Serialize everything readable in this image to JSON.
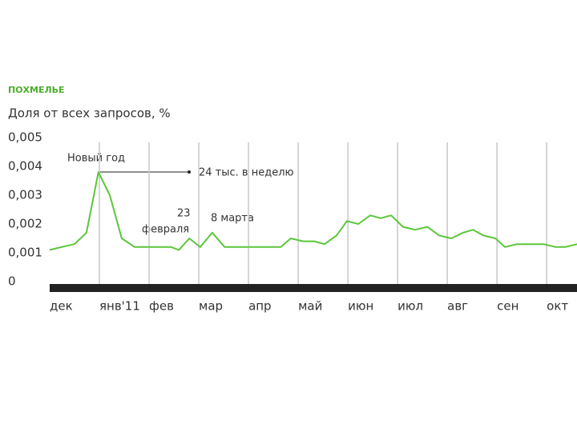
{
  "chart_data": {
    "type": "line",
    "title": "ПОХМЕЛЬЕ",
    "subtitle": "Доля от всех запросов, %",
    "annotations": [
      "Новый год",
      "24 тыс. в неделю",
      "23",
      "февраля",
      "8 марта"
    ],
    "x": [
      0,
      0.24,
      0.5,
      0.74,
      0.98,
      1.21,
      1.45,
      1.71,
      1.95,
      2.19,
      2.44,
      2.6,
      2.81,
      3.03,
      3.27,
      3.52,
      3.76,
      4,
      4.24,
      4.48,
      4.65,
      4.85,
      5.1,
      5.32,
      5.53,
      5.77,
      5.98,
      6.21,
      6.45,
      6.66,
      6.87,
      7.11,
      7.35,
      7.6,
      7.84,
      8.08,
      8.32,
      8.52,
      8.73,
      8.97,
      9.16,
      9.4,
      9.65,
      9.94,
      10.18,
      10.37,
      10.61
    ],
    "series": [
      {
        "name": "ПОХМЕЛЬЕ",
        "color": "#5cc63a",
        "values": [
          0.0011,
          0.0012,
          0.0013,
          0.0017,
          0.0038,
          0.003,
          0.0015,
          0.0012,
          0.0012,
          0.0012,
          0.0012,
          0.0011,
          0.0015,
          0.0012,
          0.0017,
          0.0012,
          0.0012,
          0.0012,
          0.0012,
          0.0012,
          0.0012,
          0.0015,
          0.0014,
          0.0014,
          0.0013,
          0.0016,
          0.0021,
          0.002,
          0.0023,
          0.0022,
          0.0023,
          0.0019,
          0.0018,
          0.0019,
          0.0016,
          0.0015,
          0.0017,
          0.0018,
          0.0016,
          0.0015,
          0.0012,
          0.0013,
          0.0013,
          0.0013,
          0.0012,
          0.0012,
          0.0013
        ]
      }
    ],
    "xlim": [
      0,
      10.61
    ],
    "xticks": [
      {
        "value": 0,
        "label": "дек"
      },
      {
        "value": 1,
        "label": "янв'11"
      },
      {
        "value": 2,
        "label": "фев"
      },
      {
        "value": 3,
        "label": "мар"
      },
      {
        "value": 4,
        "label": "апр"
      },
      {
        "value": 5,
        "label": "май"
      },
      {
        "value": 6,
        "label": "июн"
      },
      {
        "value": 7,
        "label": "июл"
      },
      {
        "value": 8,
        "label": "авг"
      },
      {
        "value": 9,
        "label": "сен"
      },
      {
        "value": 10,
        "label": "окт"
      }
    ],
    "ylim": [
      0,
      0.005
    ],
    "yticks": [
      0,
      {
        "value": 0.001,
        "label": "0,001"
      },
      {
        "value": 0.002,
        "label": "0,002"
      },
      {
        "value": 0.003,
        "label": "0,003"
      },
      {
        "value": 0.004,
        "label": "0,004"
      },
      {
        "value": 0.005,
        "label": "0,005"
      }
    ],
    "grid": true
  }
}
